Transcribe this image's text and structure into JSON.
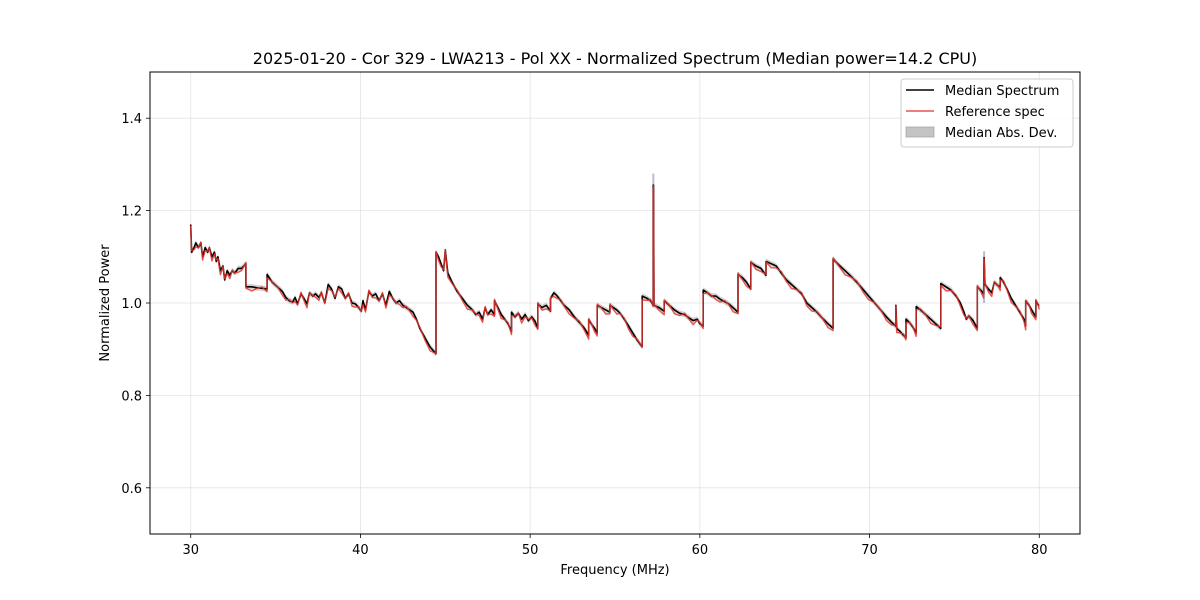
{
  "chart_data": {
    "type": "line",
    "title": "2025-01-20 - Cor 329 - LWA213 - Pol XX - Normalized Spectrum (Median power=14.2 CPU)",
    "xlabel": "Frequency (MHz)",
    "ylabel": "Normalized Power",
    "xlim": [
      27.6,
      82.4
    ],
    "ylim": [
      0.5,
      1.5
    ],
    "xticks": [
      30,
      40,
      50,
      60,
      70,
      80
    ],
    "yticks": [
      0.6,
      0.8,
      1.0,
      1.2,
      1.4
    ],
    "grid": true,
    "legend_position": "top-right",
    "colors": {
      "median": "#000000",
      "reference": "#e8322c",
      "mad": "#c4c4c4"
    },
    "legend": [
      "Median Spectrum",
      "Reference spec",
      "Median Abs. Dev."
    ],
    "mad_halfwidth": 0.006,
    "segments": [
      {
        "pts": [
          [
            30.0,
            1.17
          ],
          [
            30.05,
            1.11
          ],
          [
            30.2,
            1.12
          ],
          [
            30.3,
            1.13
          ],
          [
            30.45,
            1.12
          ],
          [
            30.6,
            1.13
          ],
          [
            30.7,
            1.1
          ],
          [
            30.85,
            1.12
          ],
          [
            31.0,
            1.11
          ],
          [
            31.1,
            1.12
          ],
          [
            31.25,
            1.1
          ],
          [
            31.4,
            1.11
          ],
          [
            31.5,
            1.09
          ],
          [
            31.6,
            1.1
          ],
          [
            31.75,
            1.07
          ],
          [
            31.9,
            1.08
          ],
          [
            32.0,
            1.05
          ],
          [
            32.15,
            1.07
          ],
          [
            32.3,
            1.06
          ],
          [
            32.45,
            1.07
          ],
          [
            32.6,
            1.065
          ],
          [
            32.8,
            1.075
          ],
          [
            33.0,
            1.075
          ],
          [
            33.25,
            1.085
          ]
        ]
      },
      {
        "pts": [
          [
            33.25,
            1.035
          ],
          [
            33.6,
            1.035
          ],
          [
            33.9,
            1.033
          ],
          [
            34.2,
            1.032
          ],
          [
            34.5,
            1.03
          ]
        ]
      },
      {
        "pts": [
          [
            34.5,
            1.062
          ],
          [
            34.8,
            1.045
          ],
          [
            35.1,
            1.035
          ],
          [
            35.4,
            1.025
          ],
          [
            35.6,
            1.012
          ],
          [
            35.8,
            1.005
          ],
          [
            36.0,
            1.002
          ],
          [
            36.15,
            1.012
          ],
          [
            36.3,
            0.998
          ],
          [
            36.5,
            1.02
          ],
          [
            36.7,
            1.008
          ],
          [
            36.85,
            0.998
          ],
          [
            37.0,
            1.022
          ],
          [
            37.2,
            1.015
          ],
          [
            37.35,
            1.02
          ],
          [
            37.55,
            1.012
          ],
          [
            37.7,
            1.022
          ],
          [
            37.9,
            1.0
          ],
          [
            38.1,
            1.04
          ],
          [
            38.3,
            1.03
          ],
          [
            38.5,
            1.01
          ],
          [
            38.7,
            1.035
          ],
          [
            38.9,
            1.03
          ],
          [
            39.1,
            1.01
          ],
          [
            39.3,
            1.02
          ],
          [
            39.5,
            1.0
          ],
          [
            39.7,
            0.998
          ],
          [
            39.9,
            0.99
          ],
          [
            40.05,
            0.982
          ],
          [
            40.15,
            1.005
          ],
          [
            40.3,
            0.985
          ],
          [
            40.5,
            1.025
          ],
          [
            40.7,
            1.015
          ],
          [
            40.9,
            1.02
          ],
          [
            41.1,
            1.005
          ],
          [
            41.3,
            1.02
          ],
          [
            41.5,
            0.995
          ],
          [
            41.7,
            1.025
          ],
          [
            41.9,
            1.01
          ],
          [
            42.1,
            1.0
          ],
          [
            42.3,
            1.005
          ],
          [
            42.5,
            0.995
          ],
          [
            42.7,
            0.99
          ],
          [
            42.9,
            0.985
          ],
          [
            43.1,
            0.98
          ],
          [
            43.3,
            0.965
          ],
          [
            43.5,
            0.945
          ],
          [
            43.8,
            0.925
          ],
          [
            44.1,
            0.905
          ],
          [
            44.45,
            0.89
          ]
        ]
      },
      {
        "pts": [
          [
            44.45,
            1.11
          ],
          [
            44.6,
            1.1
          ],
          [
            44.75,
            1.085
          ],
          [
            44.9,
            1.07
          ],
          [
            45.0,
            1.115
          ],
          [
            45.15,
            1.065
          ],
          [
            45.4,
            1.045
          ],
          [
            45.7,
            1.025
          ],
          [
            46.0,
            1.01
          ],
          [
            46.3,
            0.995
          ],
          [
            46.6,
            0.985
          ],
          [
            46.8,
            0.975
          ],
          [
            47.0,
            0.98
          ],
          [
            47.2,
            0.965
          ],
          [
            47.35,
            0.99
          ],
          [
            47.5,
            0.975
          ],
          [
            47.7,
            0.985
          ],
          [
            47.9,
            0.975
          ]
        ]
      },
      {
        "pts": [
          [
            47.9,
            1.005
          ],
          [
            48.1,
            0.99
          ],
          [
            48.3,
            0.975
          ],
          [
            48.5,
            0.965
          ],
          [
            48.7,
            0.955
          ],
          [
            48.9,
            0.938
          ]
        ]
      },
      {
        "pts": [
          [
            48.9,
            0.98
          ],
          [
            49.1,
            0.97
          ],
          [
            49.3,
            0.978
          ],
          [
            49.5,
            0.965
          ],
          [
            49.7,
            0.975
          ],
          [
            49.9,
            0.962
          ],
          [
            50.1,
            0.97
          ],
          [
            50.3,
            0.96
          ],
          [
            50.45,
            0.945
          ]
        ]
      },
      {
        "pts": [
          [
            50.45,
            0.998
          ],
          [
            50.7,
            0.99
          ],
          [
            50.95,
            0.995
          ],
          [
            51.2,
            0.982
          ]
        ]
      },
      {
        "pts": [
          [
            51.2,
            1.01
          ],
          [
            51.4,
            1.022
          ],
          [
            51.6,
            1.015
          ],
          [
            51.8,
            1.005
          ],
          [
            52.0,
            0.995
          ],
          [
            52.3,
            0.985
          ],
          [
            52.6,
            0.97
          ],
          [
            52.9,
            0.958
          ],
          [
            53.2,
            0.945
          ],
          [
            53.45,
            0.93
          ]
        ]
      },
      {
        "pts": [
          [
            53.45,
            0.965
          ],
          [
            53.6,
            0.955
          ],
          [
            53.8,
            0.945
          ],
          [
            53.95,
            0.935
          ]
        ]
      },
      {
        "pts": [
          [
            53.95,
            0.995
          ],
          [
            54.2,
            0.99
          ],
          [
            54.45,
            0.985
          ],
          [
            54.7,
            0.98
          ]
        ]
      },
      {
        "pts": [
          [
            54.7,
            0.995
          ],
          [
            54.9,
            0.99
          ],
          [
            55.1,
            0.985
          ],
          [
            55.3,
            0.978
          ],
          [
            55.55,
            0.965
          ],
          [
            55.8,
            0.95
          ],
          [
            56.05,
            0.935
          ],
          [
            56.3,
            0.92
          ],
          [
            56.6,
            0.905
          ]
        ]
      },
      {
        "pts": [
          [
            56.6,
            1.015
          ],
          [
            56.9,
            1.01
          ],
          [
            57.1,
            1.005
          ],
          [
            57.25,
            0.995
          ]
        ]
      },
      {
        "pts": [
          [
            57.25,
            1.255
          ],
          [
            57.27,
            1.255
          ],
          [
            57.3,
            0.995
          ],
          [
            57.6,
            0.99
          ],
          [
            57.9,
            0.982
          ]
        ]
      },
      {
        "pts": [
          [
            57.9,
            1.005
          ],
          [
            58.2,
            0.995
          ],
          [
            58.5,
            0.985
          ],
          [
            58.8,
            0.978
          ],
          [
            59.1,
            0.975
          ],
          [
            59.35,
            0.968
          ],
          [
            59.6,
            0.962
          ],
          [
            59.85,
            0.965
          ],
          [
            60.0,
            0.955
          ],
          [
            60.2,
            0.95
          ]
        ]
      },
      {
        "pts": [
          [
            60.2,
            1.028
          ],
          [
            60.45,
            1.022
          ],
          [
            60.7,
            1.015
          ],
          [
            60.95,
            1.015
          ],
          [
            61.2,
            1.008
          ],
          [
            61.45,
            1.003
          ],
          [
            61.7,
            0.998
          ],
          [
            61.95,
            0.99
          ],
          [
            62.25,
            0.98
          ]
        ]
      },
      {
        "pts": [
          [
            62.25,
            1.062
          ],
          [
            62.5,
            1.055
          ],
          [
            62.75,
            1.045
          ],
          [
            63.0,
            1.03
          ]
        ]
      },
      {
        "pts": [
          [
            63.0,
            1.088
          ],
          [
            63.3,
            1.08
          ],
          [
            63.6,
            1.075
          ],
          [
            63.9,
            1.06
          ]
        ]
      },
      {
        "pts": [
          [
            63.9,
            1.09
          ],
          [
            64.2,
            1.085
          ],
          [
            64.5,
            1.08
          ],
          [
            64.8,
            1.065
          ],
          [
            65.1,
            1.05
          ],
          [
            65.4,
            1.04
          ],
          [
            65.7,
            1.03
          ],
          [
            66.0,
            1.02
          ],
          [
            66.3,
            1.0
          ],
          [
            66.6,
            0.99
          ],
          [
            66.9,
            0.98
          ],
          [
            67.2,
            0.968
          ],
          [
            67.55,
            0.955
          ],
          [
            67.85,
            0.945
          ]
        ]
      },
      {
        "pts": [
          [
            67.85,
            1.095
          ],
          [
            68.2,
            1.082
          ],
          [
            68.55,
            1.07
          ],
          [
            68.9,
            1.058
          ],
          [
            69.25,
            1.045
          ],
          [
            69.6,
            1.03
          ],
          [
            69.95,
            1.015
          ],
          [
            70.3,
            1.0
          ],
          [
            70.65,
            0.985
          ],
          [
            71.0,
            0.97
          ],
          [
            71.3,
            0.958
          ],
          [
            71.55,
            0.95
          ]
        ]
      },
      {
        "pts": [
          [
            71.55,
            0.995
          ],
          [
            71.6,
            0.945
          ],
          [
            71.8,
            0.938
          ],
          [
            72.0,
            0.93
          ],
          [
            72.15,
            0.925
          ]
        ]
      },
      {
        "pts": [
          [
            72.15,
            0.965
          ],
          [
            72.35,
            0.958
          ],
          [
            72.55,
            0.948
          ],
          [
            72.75,
            0.935
          ]
        ]
      },
      {
        "pts": [
          [
            72.75,
            0.992
          ],
          [
            73.0,
            0.985
          ],
          [
            73.3,
            0.975
          ],
          [
            73.6,
            0.965
          ],
          [
            73.9,
            0.955
          ],
          [
            74.2,
            0.945
          ]
        ]
      },
      {
        "pts": [
          [
            74.2,
            1.042
          ],
          [
            74.5,
            1.035
          ],
          [
            74.8,
            1.028
          ],
          [
            75.1,
            1.015
          ],
          [
            75.35,
            1.0
          ],
          [
            75.55,
            0.982
          ],
          [
            75.7,
            0.965
          ],
          [
            75.85,
            0.972
          ],
          [
            76.1,
            0.962
          ],
          [
            76.35,
            0.945
          ]
        ]
      },
      {
        "pts": [
          [
            76.35,
            1.035
          ],
          [
            76.55,
            1.028
          ],
          [
            76.72,
            1.02
          ],
          [
            76.75,
            1.098
          ],
          [
            76.8,
            1.04
          ],
          [
            77.0,
            1.03
          ],
          [
            77.2,
            1.022
          ],
          [
            77.35,
            1.045
          ],
          [
            77.55,
            1.038
          ],
          [
            77.7,
            1.035
          ]
        ]
      },
      {
        "pts": [
          [
            77.7,
            1.055
          ],
          [
            77.9,
            1.045
          ],
          [
            78.1,
            1.03
          ],
          [
            78.35,
            1.01
          ],
          [
            78.6,
            0.995
          ],
          [
            78.85,
            0.98
          ],
          [
            79.1,
            0.965
          ],
          [
            79.2,
            0.95
          ]
        ]
      },
      {
        "pts": [
          [
            79.2,
            1.005
          ],
          [
            79.4,
            0.995
          ],
          [
            79.55,
            0.985
          ],
          [
            79.8,
            0.97
          ]
        ]
      },
      {
        "pts": [
          [
            79.8,
            1.005
          ],
          [
            79.95,
            0.995
          ],
          [
            80.0,
            0.995
          ]
        ]
      }
    ]
  }
}
